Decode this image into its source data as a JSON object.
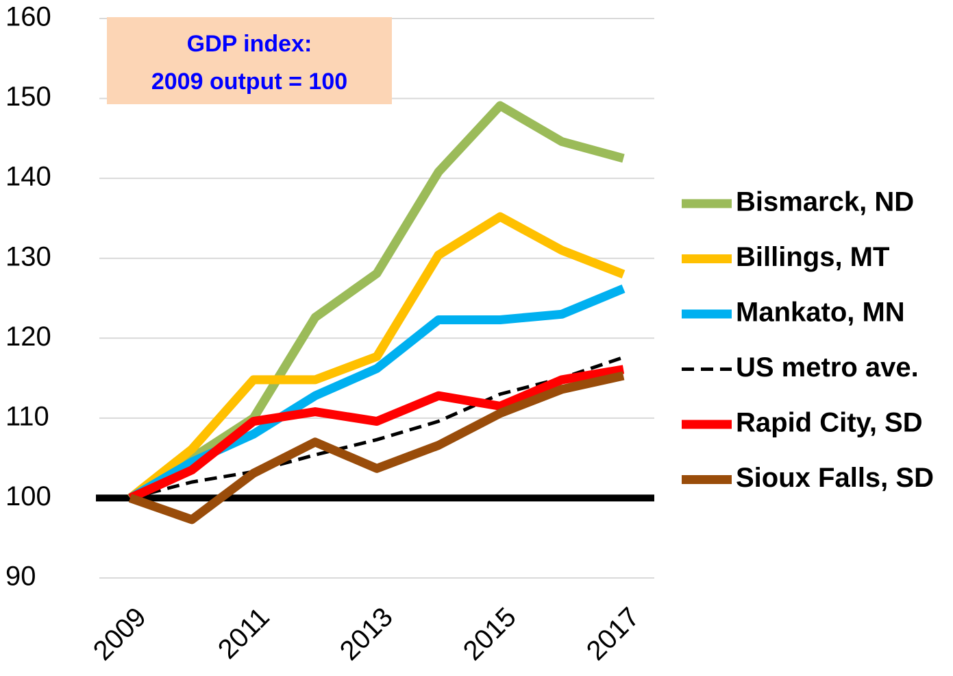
{
  "chart_data": {
    "type": "line",
    "annotation": [
      "GDP index:",
      "2009 output = 100"
    ],
    "categories": [
      "2009",
      null,
      "2011",
      null,
      "2013",
      null,
      "2015",
      null,
      "2017"
    ],
    "ylim": [
      90,
      160
    ],
    "yticks": [
      90,
      100,
      110,
      120,
      130,
      140,
      150,
      160
    ],
    "grid": true,
    "hline": 100,
    "legend": "right",
    "series": [
      {
        "name": "Bismarck, ND",
        "color": "#9bbb59",
        "values": [
          100,
          105,
          110,
          122.6,
          128.1,
          140.8,
          149.1,
          144.6,
          142.5
        ]
      },
      {
        "name": "Billings, MT",
        "color": "#ffc000",
        "values": [
          100,
          106.1,
          114.8,
          114.8,
          117.7,
          130.4,
          135.2,
          131,
          128
        ]
      },
      {
        "name": "Mankato, MN",
        "color": "#00b0f0",
        "values": [
          100,
          104.5,
          108,
          112.8,
          116.2,
          122.3,
          122.3,
          123,
          126.2
        ]
      },
      {
        "name": "US metro ave.",
        "color": "#000000",
        "dashed": true,
        "values": [
          100,
          102,
          103.3,
          105.4,
          107.3,
          109.6,
          113,
          115,
          117.6
        ]
      },
      {
        "name": "Rapid City, SD",
        "color": "#ff0000",
        "values": [
          100,
          103.5,
          109.6,
          110.8,
          109.6,
          112.8,
          111.5,
          114.8,
          116.1
        ]
      },
      {
        "name": "Sioux Falls, SD",
        "color": "#994c0a",
        "values": [
          100,
          97.3,
          103.1,
          107,
          103.7,
          106.6,
          110.6,
          113.6,
          115.3
        ]
      }
    ]
  }
}
